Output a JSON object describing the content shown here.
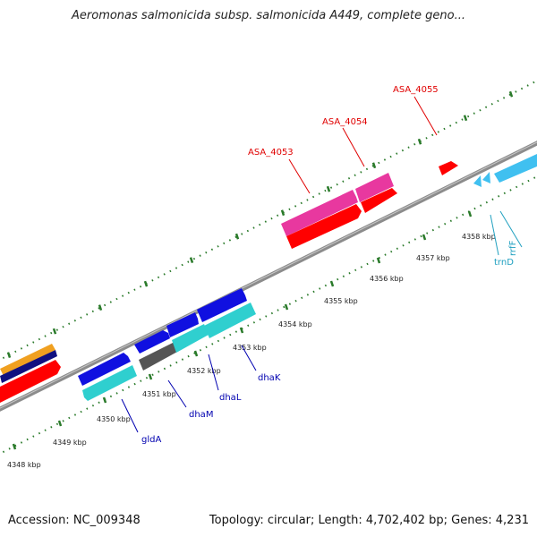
{
  "title": "Aeromonas salmonicida subsp. salmonicida A449, complete geno...",
  "footer": {
    "accession": "Accession: NC_009348",
    "stats": "Topology: circular; Length: 4,702,402 bp; Genes: 4,231"
  },
  "colors": {
    "backbone": "#8c8c8c",
    "tick": "#2a7a2a",
    "red_gene": "#ff0000",
    "pink_gene": "#e8389f",
    "blue_gene": "#1010e0",
    "cyan_gene": "#2fcfcf",
    "sky_gene": "#40c0f0",
    "gray_gene": "#555555",
    "orange_gene": "#f0a020",
    "navy_gene": "#101080",
    "label_red": "#e00000",
    "label_blue": "#0000b0",
    "label_cyan": "#20a0c0"
  },
  "ticks": [
    {
      "label": "4348 kbp"
    },
    {
      "label": "4349 kbp"
    },
    {
      "label": "4350 kbp"
    },
    {
      "label": "4351 kbp"
    },
    {
      "label": "4352 kbp"
    },
    {
      "label": "4353 kbp"
    },
    {
      "label": "4354 kbp"
    },
    {
      "label": "4355 kbp"
    },
    {
      "label": "4356 kbp"
    },
    {
      "label": "4357 kbp"
    },
    {
      "label": "4358 kbp"
    }
  ],
  "gene_labels": [
    {
      "name": "ASA_4053",
      "color": "label_red"
    },
    {
      "name": "ASA_4054",
      "color": "label_red"
    },
    {
      "name": "ASA_4055",
      "color": "label_red"
    },
    {
      "name": "gldA",
      "color": "label_blue"
    },
    {
      "name": "dhaM",
      "color": "label_blue"
    },
    {
      "name": "dhaL",
      "color": "label_blue"
    },
    {
      "name": "dhaK",
      "color": "label_blue"
    },
    {
      "name": "trnD",
      "color": "label_cyan"
    },
    {
      "name": "rrfF",
      "color": "label_cyan"
    }
  ]
}
